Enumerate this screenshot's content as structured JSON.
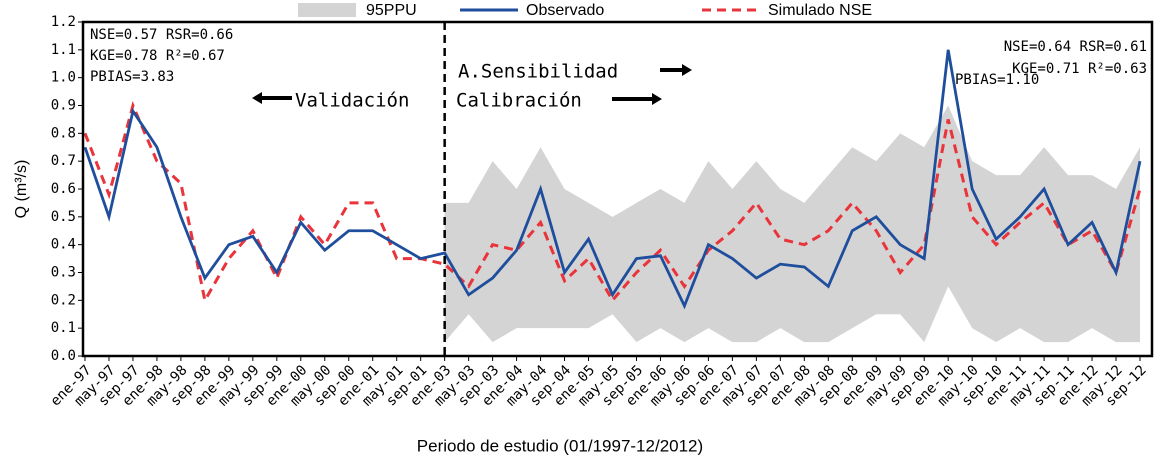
{
  "chart_data": {
    "type": "line",
    "y_label": "Q (m³/s)",
    "x_label": "Periodo de estudio (01/1997-12/2012)",
    "categories": [
      "ene-97",
      "may-97",
      "sep-97",
      "ene-98",
      "may-98",
      "sep-98",
      "ene-99",
      "may-99",
      "sep-99",
      "ene-00",
      "may-00",
      "sep-00",
      "ene-01",
      "may-01",
      "sep-01",
      "ene-03",
      "may-03",
      "sep-03",
      "ene-04",
      "may-04",
      "sep-04",
      "ene-05",
      "may-05",
      "sep-05",
      "ene-06",
      "may-06",
      "sep-06",
      "ene-07",
      "may-07",
      "sep-07",
      "ene-08",
      "may-08",
      "sep-08",
      "ene-09",
      "may-09",
      "sep-09",
      "ene-10",
      "may-10",
      "sep-10",
      "ene-11",
      "may-11",
      "sep-11",
      "ene-12",
      "may-12",
      "sep-12"
    ],
    "band": {
      "name": "95PPU",
      "color": "#d4d4d4",
      "lower": [
        null,
        null,
        null,
        null,
        null,
        null,
        null,
        null,
        null,
        null,
        null,
        null,
        null,
        null,
        null,
        0.05,
        0.15,
        0.05,
        0.1,
        0.1,
        0.1,
        0.1,
        0.15,
        0.05,
        0.1,
        0.05,
        0.1,
        0.05,
        0.05,
        0.1,
        0.05,
        0.05,
        0.1,
        0.15,
        0.15,
        0.05,
        0.25,
        0.1,
        0.05,
        0.1,
        0.05,
        0.05,
        0.1,
        0.05,
        0.05
      ],
      "upper": [
        null,
        null,
        null,
        null,
        null,
        null,
        null,
        null,
        null,
        null,
        null,
        null,
        null,
        null,
        null,
        0.55,
        0.55,
        0.7,
        0.6,
        0.75,
        0.6,
        0.55,
        0.5,
        0.55,
        0.6,
        0.55,
        0.7,
        0.6,
        0.7,
        0.6,
        0.55,
        0.65,
        0.75,
        0.7,
        0.8,
        0.75,
        0.9,
        0.7,
        0.65,
        0.65,
        0.75,
        0.65,
        0.65,
        0.6,
        0.75
      ]
    },
    "series": [
      {
        "name": "Observado",
        "color": "#1f4e9c",
        "dash": false,
        "values": [
          0.75,
          0.5,
          0.88,
          0.75,
          0.5,
          0.28,
          0.4,
          0.43,
          0.3,
          0.48,
          0.38,
          0.45,
          0.45,
          0.4,
          0.35,
          0.37,
          0.22,
          0.28,
          0.38,
          0.6,
          0.3,
          0.42,
          0.22,
          0.35,
          0.36,
          0.18,
          0.4,
          0.35,
          0.28,
          0.33,
          0.32,
          0.25,
          0.45,
          0.5,
          0.4,
          0.35,
          1.1,
          0.6,
          0.42,
          0.5,
          0.6,
          0.4,
          0.48,
          0.3,
          0.7
        ]
      },
      {
        "name": "Simulado NSE",
        "color": "#e8343a",
        "dash": true,
        "values": [
          0.8,
          0.58,
          0.9,
          0.7,
          0.62,
          0.2,
          0.35,
          0.45,
          0.28,
          0.5,
          0.4,
          0.55,
          0.55,
          0.35,
          0.35,
          0.33,
          0.25,
          0.4,
          0.38,
          0.48,
          0.27,
          0.35,
          0.2,
          0.3,
          0.38,
          0.25,
          0.38,
          0.45,
          0.55,
          0.42,
          0.4,
          0.45,
          0.55,
          0.45,
          0.3,
          0.4,
          0.85,
          0.5,
          0.4,
          0.48,
          0.55,
          0.4,
          0.45,
          0.3,
          0.6
        ]
      }
    ],
    "ylim": [
      0,
      1.2
    ],
    "yticks": [
      {
        "value": 0,
        "label": "0.0"
      },
      0.1,
      0.2,
      0.3,
      0.4,
      0.5,
      0.6,
      0.7,
      0.8,
      0.9,
      {
        "value": 1,
        "label": "1.0"
      },
      1.1,
      1.2
    ],
    "annotations": {
      "left_stats": [
        "NSE=0.57 RSR=0.66",
        "KGE=0.78 R²=0.67",
        "PBIAS=3.83"
      ],
      "right_stats": [
        "NSE=0.64 RSR=0.61",
        "KGE=0.71 R²=0.63",
        "PBIAS=1.10"
      ],
      "validation": "Validación",
      "sensitivity": "A.Sensibilidad",
      "calibration": "Calibración"
    }
  }
}
